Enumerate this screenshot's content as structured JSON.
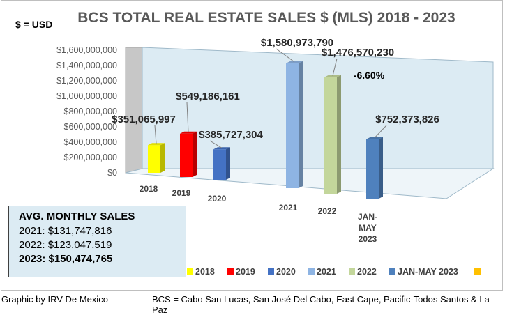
{
  "header": {
    "title": "BCS TOTAL REAL ESTATE SALES $ (MLS) 2018 - 2023",
    "currency_note": "$ = USD"
  },
  "avg_box": {
    "title": "AVG. MONTHLY SALES",
    "lines": [
      {
        "text": "2021: $131,747,816",
        "bold": false
      },
      {
        "text": "2022: $123,047,519",
        "bold": false
      },
      {
        "text": "2023: $150,474,765",
        "bold": true
      }
    ]
  },
  "footer": {
    "credit": "Graphic by IRV De Mexico",
    "legend_note": "BCS = Cabo San Lucas, San José Del Cabo, East Cape, Pacific-Todos Santos & La Paz"
  },
  "chart_data": {
    "type": "bar",
    "title": "BCS TOTAL REAL ESTATE SALES $ (MLS) 2018 - 2023",
    "xlabel": "",
    "ylabel": "",
    "ylim": [
      0,
      1600000000
    ],
    "yticks": [
      "$0",
      "$200,000,000",
      "$400,000,000",
      "$600,000,000",
      "$800,000,000",
      "$1,000,000,000",
      "$1,200,000,000",
      "$1,400,000,000",
      "$1,600,000,000"
    ],
    "grid": false,
    "legend_position": "bottom",
    "categories": [
      "2018",
      "2019",
      "2020",
      "2021",
      "2022",
      "JAN-MAY 2023"
    ],
    "category_tick_lines": [
      [
        "2018"
      ],
      [
        "2019"
      ],
      [
        "2020"
      ],
      [
        "2021"
      ],
      [
        "2022"
      ],
      [
        "JAN-",
        "MAY",
        "2023"
      ]
    ],
    "values": [
      351065997,
      549186161,
      385727304,
      1580973790,
      1476570230,
      752373826
    ],
    "value_labels": [
      "$351,065,997",
      "$549,186,161",
      "$385,727,304",
      "$1,580,973,790",
      "$1,476,570,230",
      "$752,373,826"
    ],
    "colors": [
      "#ffff00",
      "#ff0000",
      "#4472c4",
      "#8eb4e3",
      "#c3d69b",
      "#4f81bd"
    ],
    "annotations": [
      {
        "text": "-6.60%",
        "category": "2022"
      }
    ],
    "legend": [
      {
        "label": "2018",
        "color": "#ffff00"
      },
      {
        "label": "2019",
        "color": "#ff0000"
      },
      {
        "label": "2020",
        "color": "#4472c4"
      },
      {
        "label": "2021",
        "color": "#8eb4e3"
      },
      {
        "label": "2022",
        "color": "#c3d69b"
      },
      {
        "label": "JAN-MAY 2023",
        "color": "#4f81bd"
      },
      {
        "label": "",
        "color": "#ffc000"
      }
    ]
  }
}
